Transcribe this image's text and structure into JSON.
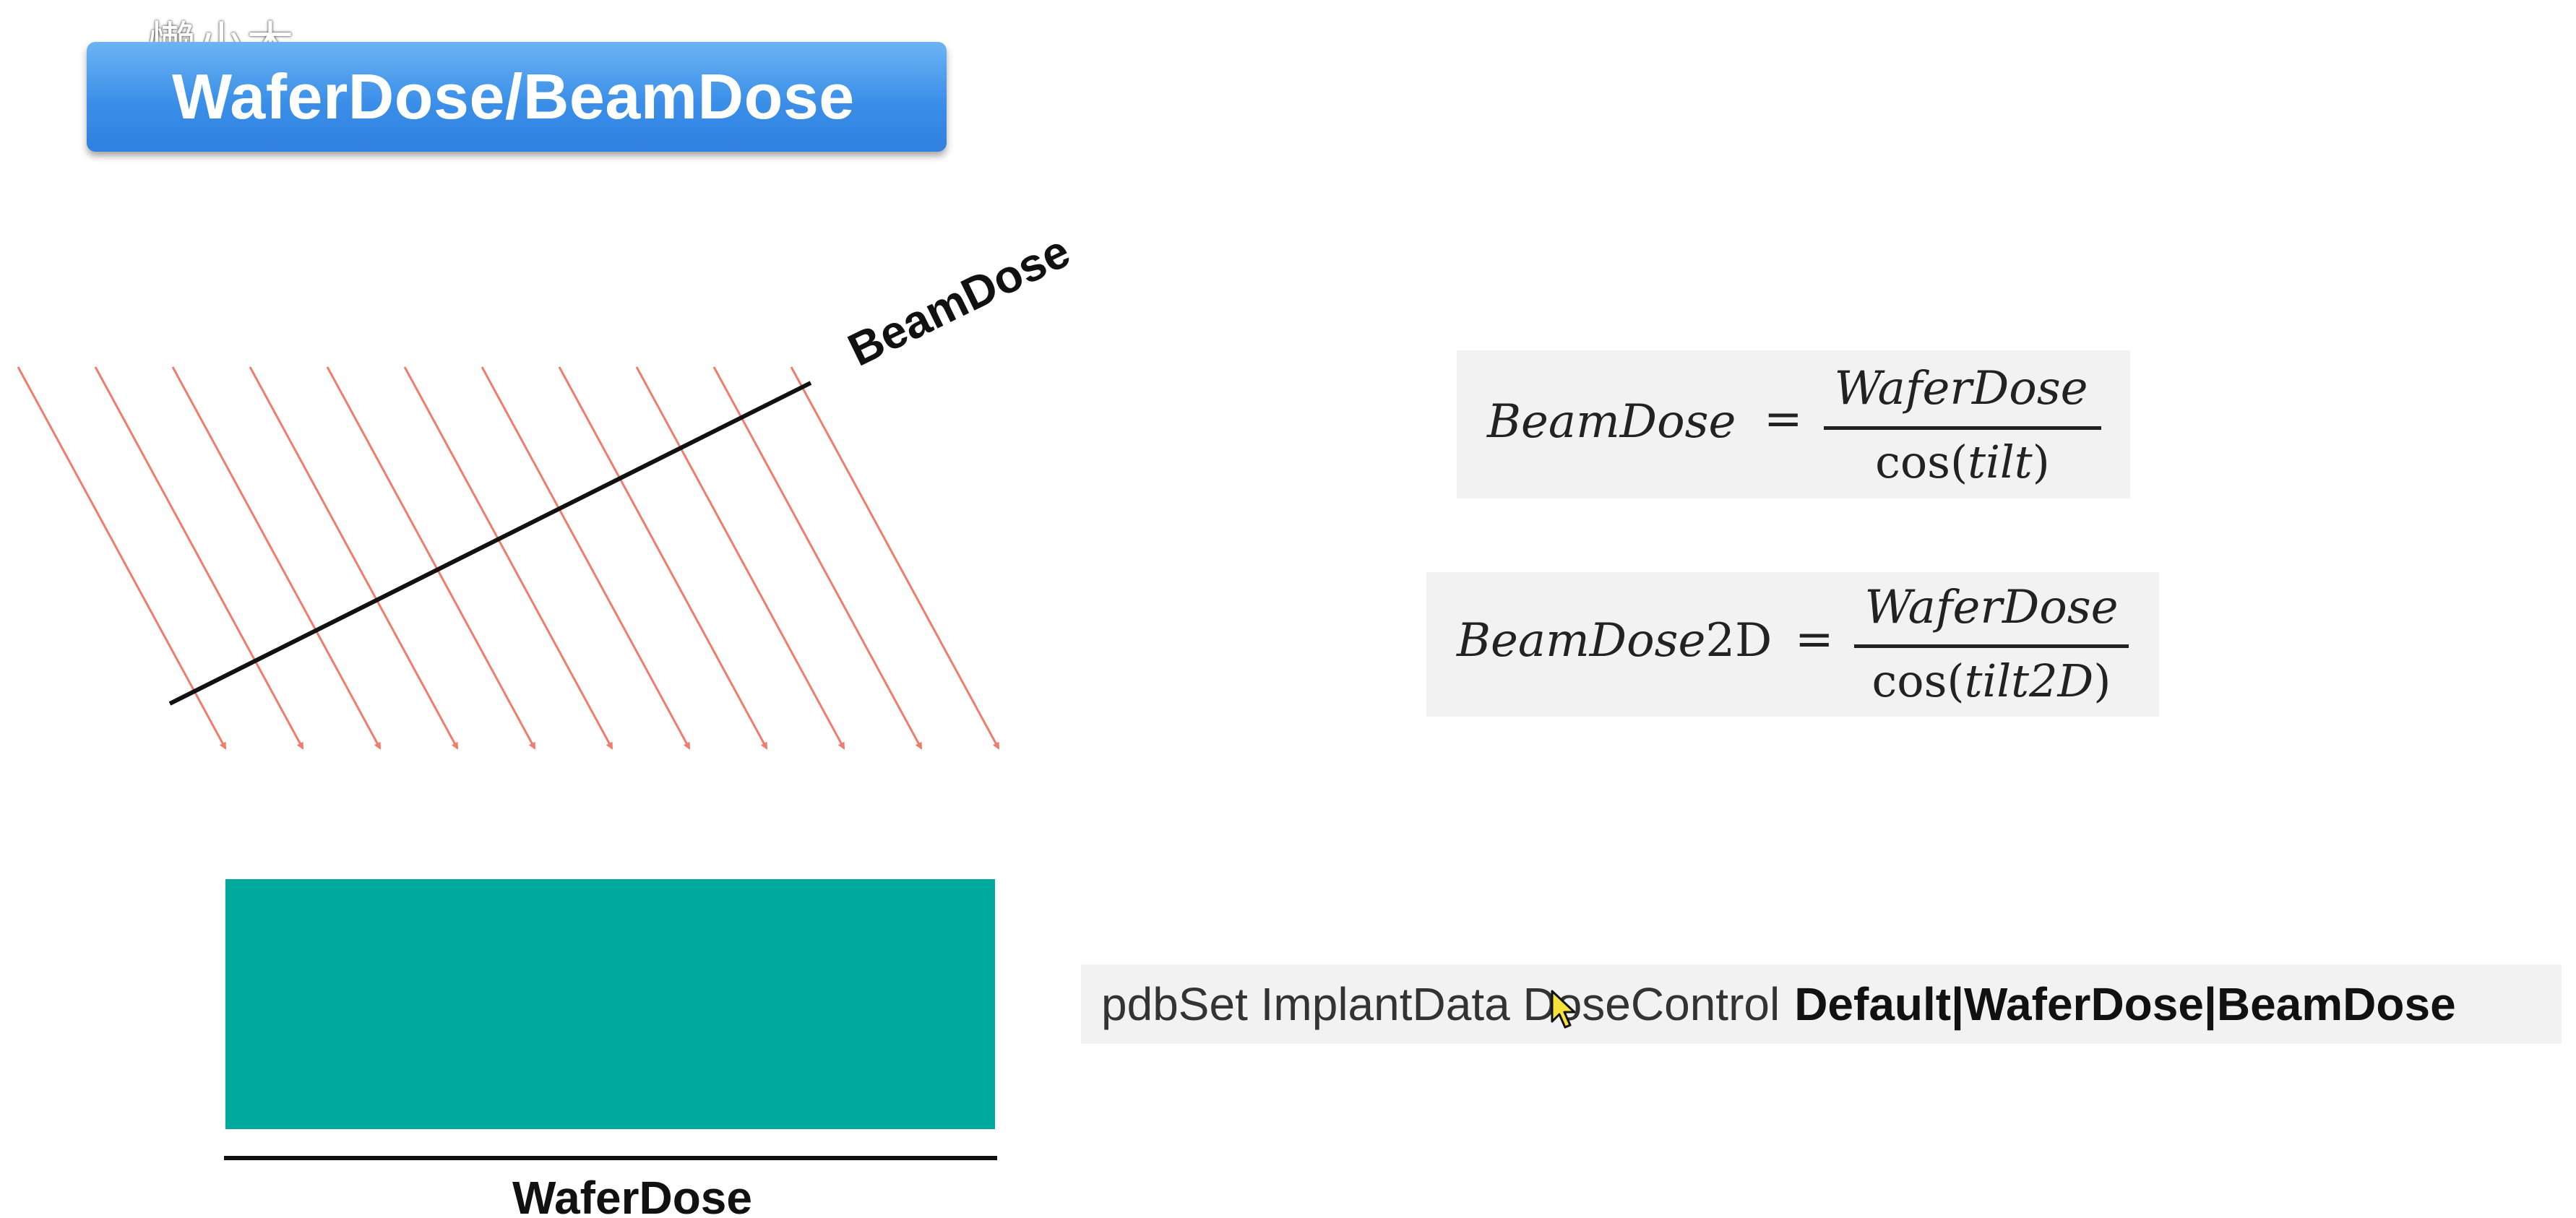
{
  "watermark": "懒小木",
  "title": "WaferDose/BeamDose",
  "diagram": {
    "beam_label": "BeamDose",
    "wafer_label": "WaferDose",
    "ray_count": 11,
    "colors": {
      "ray": "#f07c6c",
      "wafer_fill": "#00a99d",
      "line": "#111111",
      "title_banner": "#3b8fe8",
      "formula_bg": "#f2f2f2"
    }
  },
  "formulas": {
    "eq1": {
      "lhs": "BeamDose",
      "equals": "=",
      "numerator": "WaferDose",
      "denominator_func": "cos(",
      "denominator_arg": "tilt",
      "denominator_close": ")"
    },
    "eq2": {
      "lhs": "BeamDose",
      "lhs_suffix": "2D",
      "equals": "=",
      "numerator": "WaferDose",
      "denominator_func": "cos(",
      "denominator_arg": "tilt2D",
      "denominator_close": ")"
    }
  },
  "command": {
    "prefix": "pdbSet ImplantData DoseControl",
    "options": "Default|WaferDose|BeamDose"
  },
  "icons": {
    "cursor": "mouse-pointer-icon"
  }
}
